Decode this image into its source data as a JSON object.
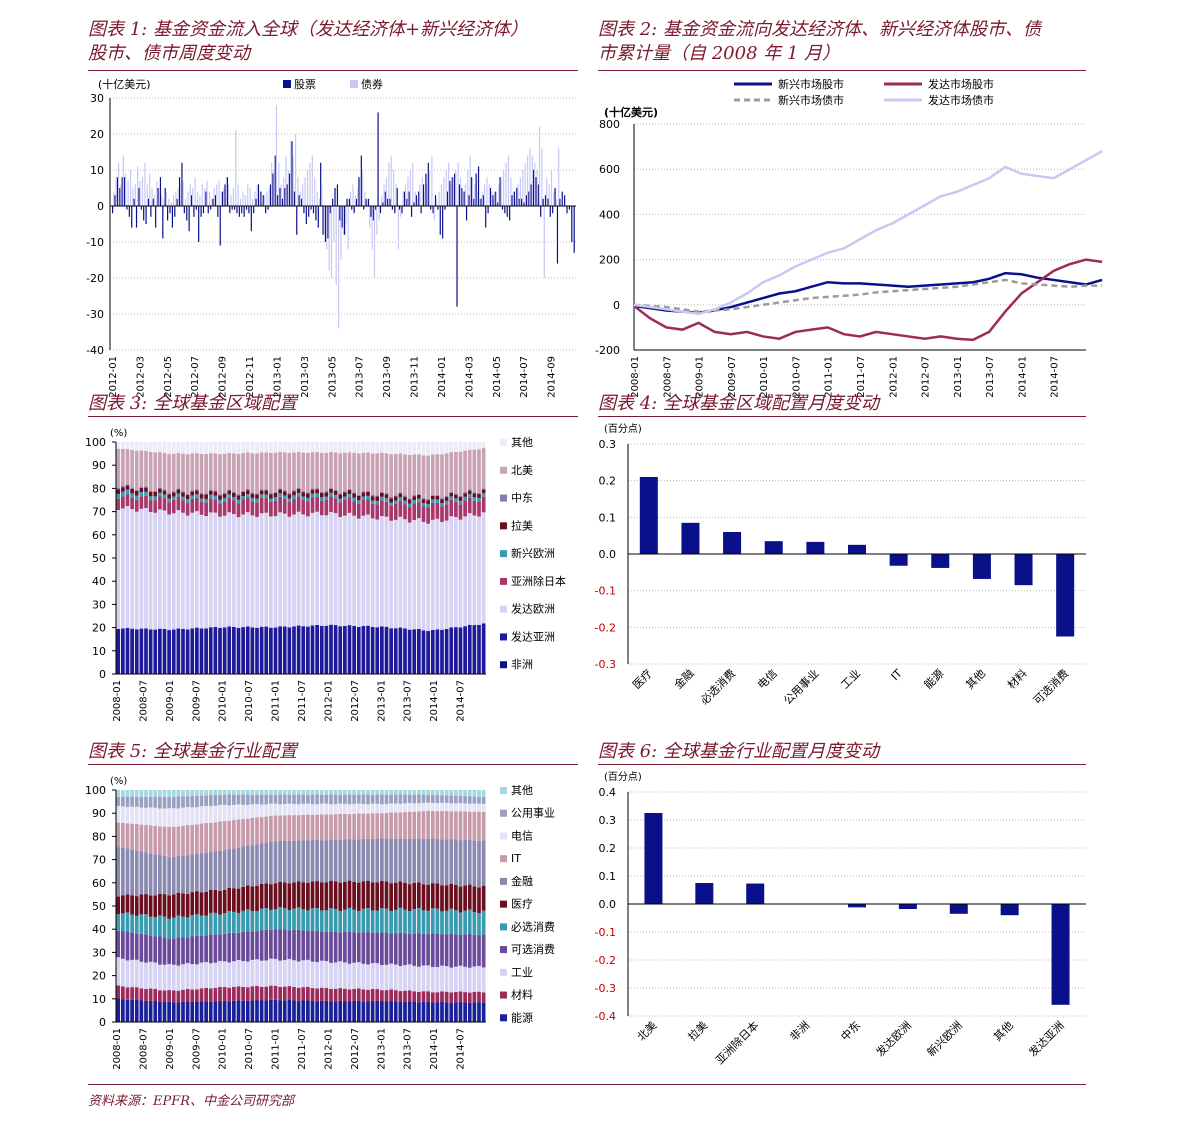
{
  "footer": "资料来源：EPFR、中金公司研究部",
  "colors": {
    "title": "#7a1a2e",
    "navy": "#0a0f8a",
    "lavender": "#c8c8f4",
    "maroon": "#9c2a5a",
    "grey": "#9b9b9b"
  },
  "chart_data": [
    {
      "id": "c1",
      "type": "bar",
      "title": "图表 1: 基金资金流入全球（发达经济体+新兴经济体）股市、债市周度变动",
      "title_lines": [
        "图表 1: 基金资金流入全球（发达经济体+新兴经济体）",
        "股市、债市周度变动"
      ],
      "unit": "(十亿美元)",
      "ylim": [
        -40,
        30
      ],
      "yticks": [
        30,
        20,
        10,
        0,
        -10,
        -20,
        -30,
        -40
      ],
      "xticks": [
        "2012-01",
        "2012-03",
        "2012-05",
        "2012-07",
        "2012-09",
        "2012-11",
        "2013-01",
        "2013-03",
        "2013-05",
        "2013-07",
        "2013-09",
        "2013-11",
        "2014-01",
        "2014-03",
        "2014-05",
        "2014-07",
        "2014-09"
      ],
      "legend": [
        "股票",
        "债券"
      ],
      "series": [
        {
          "name": "股票",
          "values": [
            -2,
            3,
            8,
            5,
            8,
            8,
            -1,
            -3,
            -6,
            2,
            -6,
            5,
            -1,
            -4,
            -5,
            2,
            -3,
            2,
            -6,
            5,
            8,
            -9,
            5,
            -4,
            -2,
            -6,
            -3,
            2,
            8,
            12,
            -2,
            -4,
            -7,
            3,
            -3,
            -1,
            -10,
            -3,
            -2,
            4,
            -2,
            -1,
            2,
            3,
            -3,
            -11,
            4,
            6,
            8,
            -2,
            -1,
            -1,
            -2,
            -3,
            -2,
            -3,
            -1,
            -2,
            -7,
            -2,
            2,
            6,
            4,
            3,
            -2,
            -1,
            6,
            9,
            14,
            3,
            5,
            2,
            5,
            6,
            9,
            18,
            4,
            -8,
            3,
            2,
            -2,
            -5,
            -3,
            -1,
            -2,
            -4,
            -6,
            12,
            -8,
            -10,
            -9,
            -2,
            2,
            5,
            6,
            -4,
            -6,
            -8,
            2,
            2,
            -1,
            -2,
            2,
            8,
            14,
            -1,
            2,
            2,
            -3,
            -4,
            -1,
            26,
            -2,
            1,
            4,
            2,
            2,
            -1,
            -2,
            5,
            -1,
            -2,
            4,
            2,
            4,
            -3,
            1,
            3,
            4,
            -2,
            6,
            9,
            12,
            -1,
            -2,
            3,
            -1,
            -8,
            -9,
            -1,
            4,
            7,
            8,
            9,
            -28,
            6,
            5,
            4,
            -4,
            3,
            8,
            2,
            9,
            11,
            2,
            3,
            -6,
            -2,
            5,
            3,
            4,
            1,
            8,
            -1,
            -2,
            -3,
            -4,
            3,
            4,
            5,
            2,
            2,
            1,
            3,
            4,
            6,
            10,
            8,
            6,
            -3,
            2,
            3,
            2,
            -3,
            -2,
            5,
            -16,
            2,
            4,
            3,
            -2,
            -1,
            -10,
            -13
          ]
        },
        {
          "name": "债券",
          "values": [
            4,
            8,
            12,
            6,
            14,
            9,
            7,
            10,
            5,
            6,
            11,
            7,
            8,
            12,
            6,
            9,
            5,
            3,
            7,
            4,
            3,
            2,
            4,
            2,
            1,
            3,
            4,
            5,
            6,
            7,
            2,
            4,
            6,
            5,
            8,
            4,
            3,
            6,
            5,
            7,
            4,
            2,
            5,
            6,
            7,
            4,
            5,
            8,
            6,
            3,
            5,
            21,
            6,
            2,
            4,
            3,
            6,
            5,
            2,
            4,
            6,
            2,
            1,
            3,
            4,
            5,
            12,
            10,
            28,
            12,
            6,
            8,
            14,
            10,
            18,
            14,
            20,
            8,
            4,
            6,
            8,
            10,
            12,
            14,
            8,
            4,
            2,
            6,
            -8,
            -12,
            -18,
            -20,
            -10,
            -22,
            -34,
            -15,
            -8,
            -5,
            -12,
            4,
            6,
            3,
            5,
            8,
            10,
            4,
            2,
            -6,
            -12,
            -20,
            -8,
            -4,
            3,
            6,
            8,
            12,
            14,
            10,
            6,
            -12,
            -3,
            4,
            6,
            8,
            10,
            12,
            4,
            2,
            6,
            8,
            4,
            6,
            10,
            14,
            -4,
            2,
            4,
            6,
            8,
            10,
            12,
            6,
            8,
            10,
            12,
            8,
            4,
            6,
            10,
            14,
            8,
            6,
            4,
            2,
            4,
            6,
            8,
            6,
            4,
            2,
            4,
            6,
            8,
            10,
            12,
            14,
            8,
            4,
            2,
            6,
            8,
            10,
            12,
            14,
            16,
            14,
            12,
            10,
            22,
            16,
            -20,
            8,
            6,
            10,
            4,
            2,
            16
          ]
        }
      ]
    },
    {
      "id": "c2",
      "type": "line",
      "title": "图表 2: 基金资金流向发达经济体、新兴经济体股市、债市累计量（自 2008 年 1 月）",
      "title_lines": [
        "图表 2: 基金资金流向发达经济体、新兴经济体股市、债",
        "市累计量（自 2008 年 1 月）"
      ],
      "unit": "(十亿美元)",
      "ylim": [
        -200,
        800
      ],
      "yticks": [
        800,
        600,
        400,
        200,
        0,
        -200
      ],
      "xticks": [
        "2008-01",
        "2008-07",
        "2009-01",
        "2009-07",
        "2010-01",
        "2010-07",
        "2011-01",
        "2011-07",
        "2012-01",
        "2012-07",
        "2013-01",
        "2013-07",
        "2014-01",
        "2014-07"
      ],
      "x_month_index": [
        0,
        3,
        6,
        9,
        12,
        15,
        18,
        21,
        24,
        27,
        30,
        33,
        36,
        39,
        42,
        45,
        48,
        51,
        54,
        57,
        60,
        63,
        66,
        69,
        72,
        75,
        78,
        81,
        84,
        87
      ],
      "series": [
        {
          "name": "新兴市场股市",
          "values": [
            -5,
            -15,
            -25,
            -30,
            -35,
            -25,
            -10,
            10,
            30,
            50,
            60,
            80,
            100,
            95,
            95,
            90,
            85,
            80,
            85,
            90,
            95,
            100,
            115,
            140,
            135,
            120,
            110,
            100,
            90,
            110
          ]
        },
        {
          "name": "发达市场股市",
          "values": [
            -5,
            -60,
            -100,
            -110,
            -80,
            -120,
            -130,
            -120,
            -140,
            -150,
            -120,
            -110,
            -100,
            -130,
            -140,
            -120,
            -130,
            -140,
            -150,
            -140,
            -150,
            -155,
            -120,
            -30,
            50,
            100,
            150,
            180,
            200,
            190
          ]
        },
        {
          "name": "新兴市场债市",
          "values": [
            0,
            -5,
            -10,
            -20,
            -30,
            -25,
            -20,
            -10,
            0,
            10,
            20,
            30,
            35,
            40,
            45,
            55,
            60,
            65,
            70,
            75,
            80,
            90,
            100,
            110,
            95,
            90,
            85,
            80,
            85,
            85
          ]
        },
        {
          "name": "发达市场债市",
          "values": [
            0,
            -10,
            -20,
            -30,
            -40,
            -20,
            10,
            50,
            100,
            130,
            170,
            200,
            230,
            250,
            290,
            330,
            360,
            400,
            440,
            480,
            500,
            530,
            560,
            610,
            580,
            570,
            560,
            600,
            640,
            680
          ]
        }
      ]
    },
    {
      "id": "c3",
      "type": "bar",
      "title": "图表 3: 全球基金区域配置",
      "unit": "(%)",
      "ylim": [
        0,
        100
      ],
      "yticks": [
        100,
        90,
        80,
        70,
        60,
        50,
        40,
        30,
        20,
        10,
        0
      ],
      "xticks": [
        "2008-01",
        "2008-07",
        "2009-01",
        "2009-07",
        "2010-01",
        "2010-07",
        "2011-01",
        "2011-07",
        "2012-01",
        "2012-07",
        "2013-01",
        "2013-07",
        "2014-01",
        "2014-07"
      ],
      "n_bars": 80,
      "legend": [
        "其他",
        "北美",
        "中东",
        "拉美",
        "新兴欧洲",
        "亚洲除日本",
        "发达欧洲",
        "发达亚洲",
        "非洲"
      ],
      "stack_order": [
        "非洲",
        "发达亚洲",
        "发达欧洲",
        "亚洲除日本",
        "新兴欧洲",
        "拉美",
        "中东",
        "北美",
        "其他"
      ],
      "anchors": {
        "非洲": [
          0.2,
          0.2,
          0.2,
          0.2,
          0.2,
          0.2,
          0.2,
          0.2
        ],
        "发达亚洲": [
          19.5,
          19.0,
          20.0,
          20.0,
          20.8,
          20.2,
          18.5,
          21.5
        ],
        "发达欧洲": [
          52.0,
          50.5,
          48.5,
          48.5,
          48.0,
          47.0,
          47.0,
          47.5
        ],
        "亚洲除日本": [
          5.0,
          5.5,
          6.0,
          6.5,
          6.5,
          6.5,
          7.0,
          6.5
        ],
        "新兴欧洲": [
          2.0,
          1.5,
          1.5,
          1.5,
          1.5,
          1.5,
          1.5,
          1.5
        ],
        "拉美": [
          2.0,
          1.8,
          1.8,
          1.8,
          1.8,
          1.8,
          1.6,
          1.6
        ],
        "中东": [
          0.5,
          0.5,
          0.5,
          0.5,
          0.5,
          0.5,
          0.5,
          0.5
        ],
        "北美": [
          16.0,
          16.0,
          16.5,
          16.5,
          16.0,
          17.5,
          18.0,
          18.0
        ],
        "其他": [
          2.8,
          5.0,
          5.0,
          4.5,
          4.5,
          4.8,
          5.7,
          2.7
        ]
      }
    },
    {
      "id": "c4",
      "type": "bar",
      "title": "图表 4: 全球基金区域配置月度变动",
      "unit": "(百分点)",
      "ylim": [
        -0.3,
        0.3
      ],
      "yticks": [
        0.3,
        0.2,
        0.1,
        0.0,
        -0.1,
        -0.2,
        -0.3
      ],
      "ytick_labels": [
        "0.3",
        "0.2",
        "0.1",
        "0.0",
        "-0.1",
        "-0.2",
        "-0.3"
      ],
      "categories": [
        "医疗",
        "金融",
        "必选消费",
        "电信",
        "公用事业",
        "工业",
        "IT",
        "能源",
        "其他",
        "材料",
        "可选消费"
      ],
      "values": [
        0.21,
        0.085,
        0.06,
        0.035,
        0.033,
        0.025,
        -0.032,
        -0.038,
        -0.068,
        -0.085,
        -0.225
      ]
    },
    {
      "id": "c5",
      "type": "bar",
      "title": "图表 5: 全球基金行业配置",
      "unit": "(%)",
      "ylim": [
        0,
        100
      ],
      "yticks": [
        100,
        90,
        80,
        70,
        60,
        50,
        40,
        30,
        20,
        10,
        0
      ],
      "xticks": [
        "2008-01",
        "2008-07",
        "2009-01",
        "2009-07",
        "2010-01",
        "2010-07",
        "2011-01",
        "2011-07",
        "2012-01",
        "2012-07",
        "2013-01",
        "2013-07",
        "2014-01",
        "2014-07"
      ],
      "n_bars": 80,
      "legend": [
        "其他",
        "公用事业",
        "电信",
        "IT",
        "金融",
        "医疗",
        "必选消费",
        "可选消费",
        "工业",
        "材料",
        "能源"
      ],
      "stack_order": [
        "能源",
        "材料",
        "工业",
        "可选消费",
        "必选消费",
        "医疗",
        "金融",
        "IT",
        "电信",
        "公用事业",
        "其他"
      ],
      "anchors": {
        "能源": [
          10.0,
          8.5,
          9.0,
          9.5,
          9.0,
          9.0,
          8.5,
          8.5
        ],
        "材料": [
          5.5,
          5.0,
          6.0,
          6.0,
          5.5,
          5.0,
          4.5,
          4.5
        ],
        "工业": [
          12.0,
          11.0,
          11.0,
          11.5,
          11.5,
          11.0,
          11.0,
          11.0
        ],
        "可选消费": [
          12.0,
          11.5,
          12.0,
          13.0,
          13.0,
          13.5,
          14.0,
          14.0
        ],
        "必选消费": [
          7.5,
          9.0,
          9.0,
          9.0,
          9.5,
          10.0,
          10.5,
          10.0
        ],
        "医疗": [
          7.5,
          10.0,
          10.0,
          11.0,
          12.0,
          12.0,
          11.0,
          11.0
        ],
        "金融": [
          21.0,
          16.0,
          17.0,
          18.0,
          18.0,
          18.5,
          19.5,
          20.0
        ],
        "IT": [
          10.5,
          13.0,
          12.5,
          11.0,
          11.0,
          11.0,
          12.0,
          12.5
        ],
        "电信": [
          7.0,
          8.0,
          7.0,
          5.0,
          4.5,
          4.0,
          3.5,
          3.5
        ],
        "公用事业": [
          4.0,
          5.0,
          4.5,
          4.0,
          4.0,
          4.0,
          3.5,
          3.0
        ],
        "其他": [
          3.0,
          3.0,
          2.0,
          2.0,
          2.0,
          2.0,
          2.0,
          3.0
        ]
      }
    },
    {
      "id": "c6",
      "type": "bar",
      "title": "图表 6: 全球基金行业配置月度变动",
      "unit": "(百分点)",
      "ylim": [
        -0.4,
        0.4
      ],
      "yticks": [
        0.4,
        0.3,
        0.2,
        0.1,
        0.0,
        -0.1,
        -0.2,
        -0.3,
        -0.4
      ],
      "ytick_labels": [
        "0.4",
        "0.3",
        "0.2",
        "0.1",
        "0.0",
        "-0.1",
        "-0.2",
        "-0.3",
        "-0.4"
      ],
      "categories": [
        "北美",
        "拉美",
        "亚洲除日本",
        "非洲",
        "中东",
        "发达欧洲",
        "新兴欧洲",
        "其他",
        "发达亚洲"
      ],
      "values": [
        0.325,
        0.075,
        0.073,
        0.0,
        -0.012,
        -0.018,
        -0.035,
        -0.04,
        -0.36
      ]
    }
  ]
}
